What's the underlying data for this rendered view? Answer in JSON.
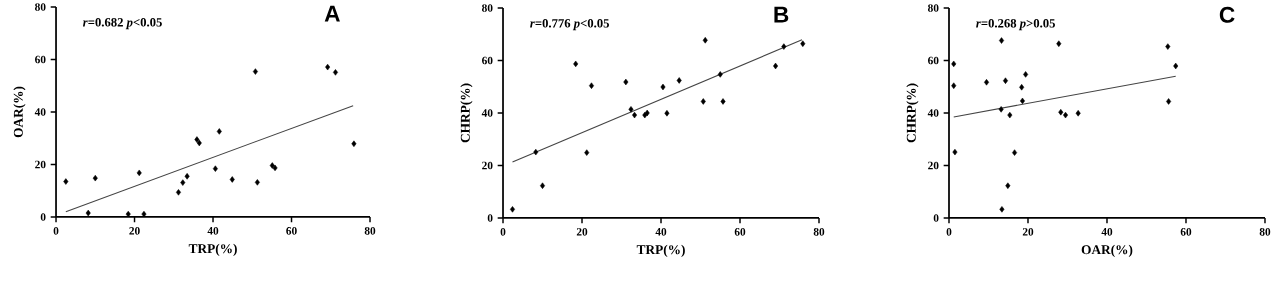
{
  "chart_data": [
    {
      "type": "scatter",
      "title": "A",
      "xlabel": "TRP(%)",
      "ylabel": "OAR(%)",
      "annotations": [
        "*r*=0.682 *p*<0.05"
      ],
      "xlim": [
        0,
        80
      ],
      "ylim": [
        0,
        80
      ],
      "xticks": [
        0,
        20,
        40,
        60,
        80
      ],
      "yticks": [
        0,
        20,
        40,
        60,
        80
      ],
      "series": [
        {
          "marker": "diamond",
          "color": "#000000",
          "x": [
            2.5,
            8.2,
            10,
            18.4,
            21.2,
            22.4,
            31.2,
            32.3,
            33.4,
            35.9,
            36.5,
            40.6,
            41.6,
            44.9,
            50.8,
            51.3,
            55.1,
            55.8,
            69.2,
            71.2,
            75.9
          ],
          "values": [
            13.5,
            1.5,
            14.8,
            1.1,
            16.8,
            1.1,
            9.4,
            13.1,
            15.5,
            29.5,
            28.2,
            18.4,
            32.6,
            14.3,
            55.4,
            13.2,
            19.6,
            18.7,
            57.1,
            55.1,
            27.9
          ]
        },
        {
          "type": "line",
          "color": "#444444",
          "x": [
            2.5,
            75.7
          ],
          "values": [
            2.0,
            42.4
          ]
        }
      ]
    },
    {
      "type": "scatter",
      "title": "B",
      "xlabel": "TRP(%)",
      "ylabel": "CHRP(%)",
      "annotations": [
        "*r*=0.776 *p*<0.05"
      ],
      "xlim": [
        0,
        80
      ],
      "ylim": [
        0,
        80
      ],
      "xticks": [
        0,
        20,
        40,
        60,
        80
      ],
      "yticks": [
        0,
        20,
        40,
        60,
        80
      ],
      "series": [
        {
          "marker": "diamond",
          "color": "#000000",
          "x": [
            2.4,
            8.3,
            10,
            18.4,
            21.2,
            22.4,
            31.1,
            32.4,
            33.3,
            35.9,
            36.5,
            40.5,
            41.5,
            44.6,
            50.7,
            51.2,
            55,
            55.7,
            69,
            71.1,
            75.9
          ],
          "values": [
            3.3,
            25.1,
            12.3,
            58.7,
            24.9,
            50.4,
            51.8,
            41.4,
            39.2,
            39.2,
            40,
            49.9,
            39.9,
            52.4,
            44.4,
            67.7,
            54.7,
            44.4,
            57.9,
            65.3,
            66.4
          ]
        },
        {
          "type": "line",
          "color": "#444444",
          "x": [
            2.4,
            75.7
          ],
          "values": [
            21.3,
            67.9
          ]
        }
      ]
    },
    {
      "type": "scatter",
      "title": "C",
      "xlabel": "OAR(%)",
      "ylabel": "CHRP(%)",
      "annotations": [
        "*r*=0.268 *p*>0.05"
      ],
      "xlim": [
        0,
        80
      ],
      "ylim": [
        0,
        80
      ],
      "xticks": [
        0,
        20,
        40,
        60,
        80
      ],
      "yticks": [
        0,
        20,
        40,
        60,
        80
      ],
      "series": [
        {
          "marker": "diamond",
          "color": "#000000",
          "x": [
            1.2,
            1.2,
            1.5,
            9.5,
            13.3,
            13.2,
            13.4,
            14.3,
            14.9,
            15.4,
            16.6,
            18.4,
            18.6,
            19.4,
            27.8,
            28.3,
            29.5,
            32.7,
            55.4,
            55.6,
            57.4
          ],
          "values": [
            58.7,
            50.4,
            25.1,
            51.7,
            67.6,
            41.4,
            3.3,
            52.3,
            12.3,
            39.2,
            24.9,
            49.8,
            44.6,
            54.7,
            66.4,
            40.3,
            39.2,
            39.9,
            65.3,
            44.4,
            57.9
          ]
        },
        {
          "type": "line",
          "color": "#444444",
          "x": [
            1.2,
            57.4
          ],
          "values": [
            38.5,
            54.0
          ]
        }
      ]
    }
  ]
}
